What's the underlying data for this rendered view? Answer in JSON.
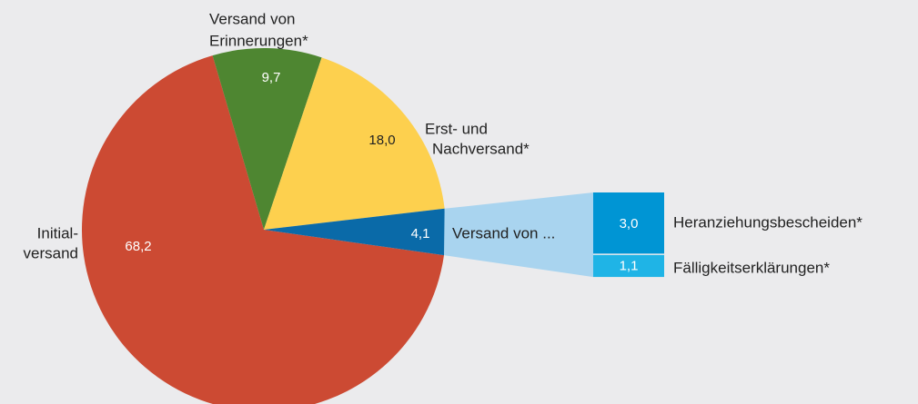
{
  "chart_data": {
    "type": "pie",
    "categories": [
      [
        "Initial-",
        "versand"
      ],
      [
        "Versand von",
        "Erinnerungen*"
      ],
      [
        "Erst- und",
        "Nachversand*"
      ],
      [
        "Versand von ..."
      ]
    ],
    "values": [
      68.2,
      9.7,
      18.0,
      4.1
    ],
    "value_labels": [
      "68,2",
      "9,7",
      "18,0",
      "4,1"
    ],
    "colors": [
      "#cc4a33",
      "#4e8631",
      "#fdd04e",
      "#0a6aa8"
    ],
    "breakdown": {
      "categories": [
        "Heranziehungsbescheiden*",
        "Fälligkeitserklärungen*"
      ],
      "values": [
        3.0,
        1.1
      ],
      "value_labels": [
        "3,0",
        "1,1"
      ],
      "colors": [
        "#0095d4",
        "#1fb4e6"
      ],
      "connector_color": "#a9d4ef"
    }
  }
}
